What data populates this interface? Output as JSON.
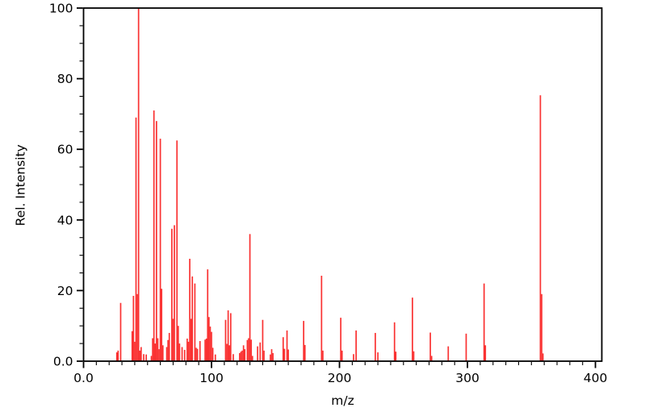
{
  "figure": {
    "background": "#ffffff",
    "axis_color": "#000000"
  },
  "chart_data": {
    "type": "bar",
    "subtype": "mass-spectrum",
    "title": "",
    "xlabel": "m/z",
    "ylabel": "Rel. Intensity",
    "xlim": [
      0,
      405
    ],
    "ylim": [
      0,
      100
    ],
    "grid": false,
    "legend": "none",
    "bar_color": "#fa3232",
    "x_ticks": [
      0,
      100,
      200,
      300,
      400
    ],
    "x_tick_labels": [
      "0.0",
      "100",
      "200",
      "300",
      "400"
    ],
    "x_minor_step": 10,
    "y_ticks": [
      0,
      20,
      40,
      60,
      80,
      100
    ],
    "y_tick_labels": [
      "0.0",
      "20",
      "40",
      "60",
      "80",
      "100"
    ],
    "y_minor_step": 5,
    "peaks": {
      "mz": [
        26,
        27,
        29,
        38,
        39,
        40,
        41,
        42,
        43,
        44,
        45,
        47,
        49,
        53,
        54,
        55,
        56,
        57,
        58,
        59,
        60,
        61,
        62,
        65,
        66,
        67,
        69,
        70,
        71,
        73,
        74,
        75,
        77,
        79,
        81,
        82,
        83,
        84,
        85,
        87,
        88,
        89,
        91,
        95,
        96,
        97,
        98,
        99,
        100,
        101,
        103,
        111,
        112,
        113,
        114,
        115,
        117,
        122,
        123,
        124,
        125,
        126,
        128,
        129,
        130,
        131,
        132,
        136,
        138,
        140,
        141,
        146,
        147,
        148,
        156,
        157,
        159,
        160,
        172,
        173,
        186,
        187,
        201,
        202,
        211,
        213,
        228,
        230,
        243,
        244,
        257,
        258,
        271,
        272,
        285,
        299,
        313,
        314,
        357,
        358,
        359
      ],
      "intensity": [
        2.5,
        3,
        16.5,
        8.5,
        18.5,
        5.5,
        69,
        19,
        100,
        3,
        4,
        2,
        1.9,
        1.5,
        6.5,
        71,
        5,
        68,
        6.5,
        3.4,
        63,
        20.5,
        4.5,
        4,
        6,
        8,
        37.5,
        12,
        38.5,
        62.5,
        10,
        5,
        4,
        3.2,
        6.4,
        5.5,
        29,
        12,
        24,
        22,
        3.8,
        3.5,
        5.7,
        6.1,
        6.4,
        26,
        12.5,
        9.8,
        8.3,
        3.8,
        1.9,
        11.7,
        4.9,
        14.4,
        4.5,
        13.6,
        2,
        2.3,
        2.7,
        3,
        4.5,
        3.4,
        6,
        6.5,
        36,
        6.1,
        1.5,
        4.2,
        5.3,
        11.7,
        3,
        1.9,
        3.4,
        2.3,
        6.8,
        3.5,
        8.7,
        3.3,
        11.4,
        4.6,
        24.2,
        3,
        12.3,
        3,
        2,
        8.7,
        8,
        2.5,
        11,
        2.7,
        18,
        2.8,
        8.1,
        1.5,
        4.2,
        7.8,
        22,
        4.5,
        75.3,
        19,
        2.2
      ]
    }
  }
}
